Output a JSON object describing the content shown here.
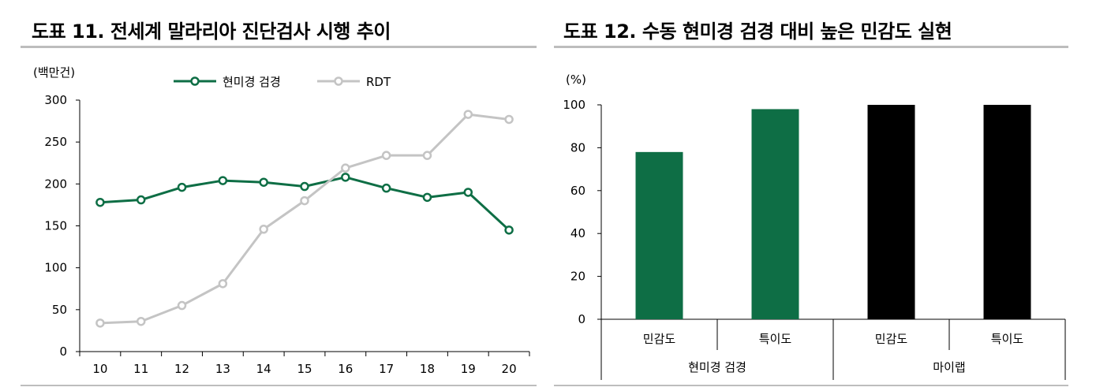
{
  "left": {
    "title": "도표 11. 전세계 말라리아 진단검사 시행 추이",
    "unit": "(백만건)",
    "chart_data": {
      "type": "line",
      "x": [
        "10",
        "11",
        "12",
        "13",
        "14",
        "15",
        "16",
        "17",
        "18",
        "19",
        "20"
      ],
      "series": [
        {
          "name": "현미경 검경",
          "color": "#0e6e45",
          "values": [
            178,
            181,
            196,
            204,
            202,
            197,
            208,
            195,
            184,
            190,
            145
          ]
        },
        {
          "name": "RDT",
          "color": "#c4c4c4",
          "values": [
            34,
            36,
            55,
            81,
            146,
            180,
            219,
            234,
            234,
            283,
            277
          ]
        }
      ],
      "yticks": [
        "0",
        "50",
        "100",
        "150",
        "200",
        "250",
        "300"
      ],
      "ylim": [
        0,
        300
      ],
      "grid": false,
      "legend": "top"
    }
  },
  "right": {
    "title": "도표 12. 수동 현미경 검경 대비 높은 민감도 실현",
    "unit": "(%)",
    "chart_data": {
      "type": "bar",
      "categories": [
        "민감도",
        "특이도",
        "민감도",
        "특이도"
      ],
      "groups": [
        {
          "label": "현미경 검경",
          "categories": [
            "민감도",
            "특이도"
          ],
          "values": [
            78,
            98
          ],
          "color": "#0e6e45"
        },
        {
          "label": "마이랩",
          "categories": [
            "민감도",
            "특이도"
          ],
          "values": [
            100,
            100
          ],
          "color": "#000000"
        }
      ],
      "values": [
        78,
        98,
        100,
        100
      ],
      "yticks": [
        "0",
        "20",
        "40",
        "60",
        "80",
        "100"
      ],
      "ylim": [
        0,
        100
      ],
      "grid": false
    }
  }
}
